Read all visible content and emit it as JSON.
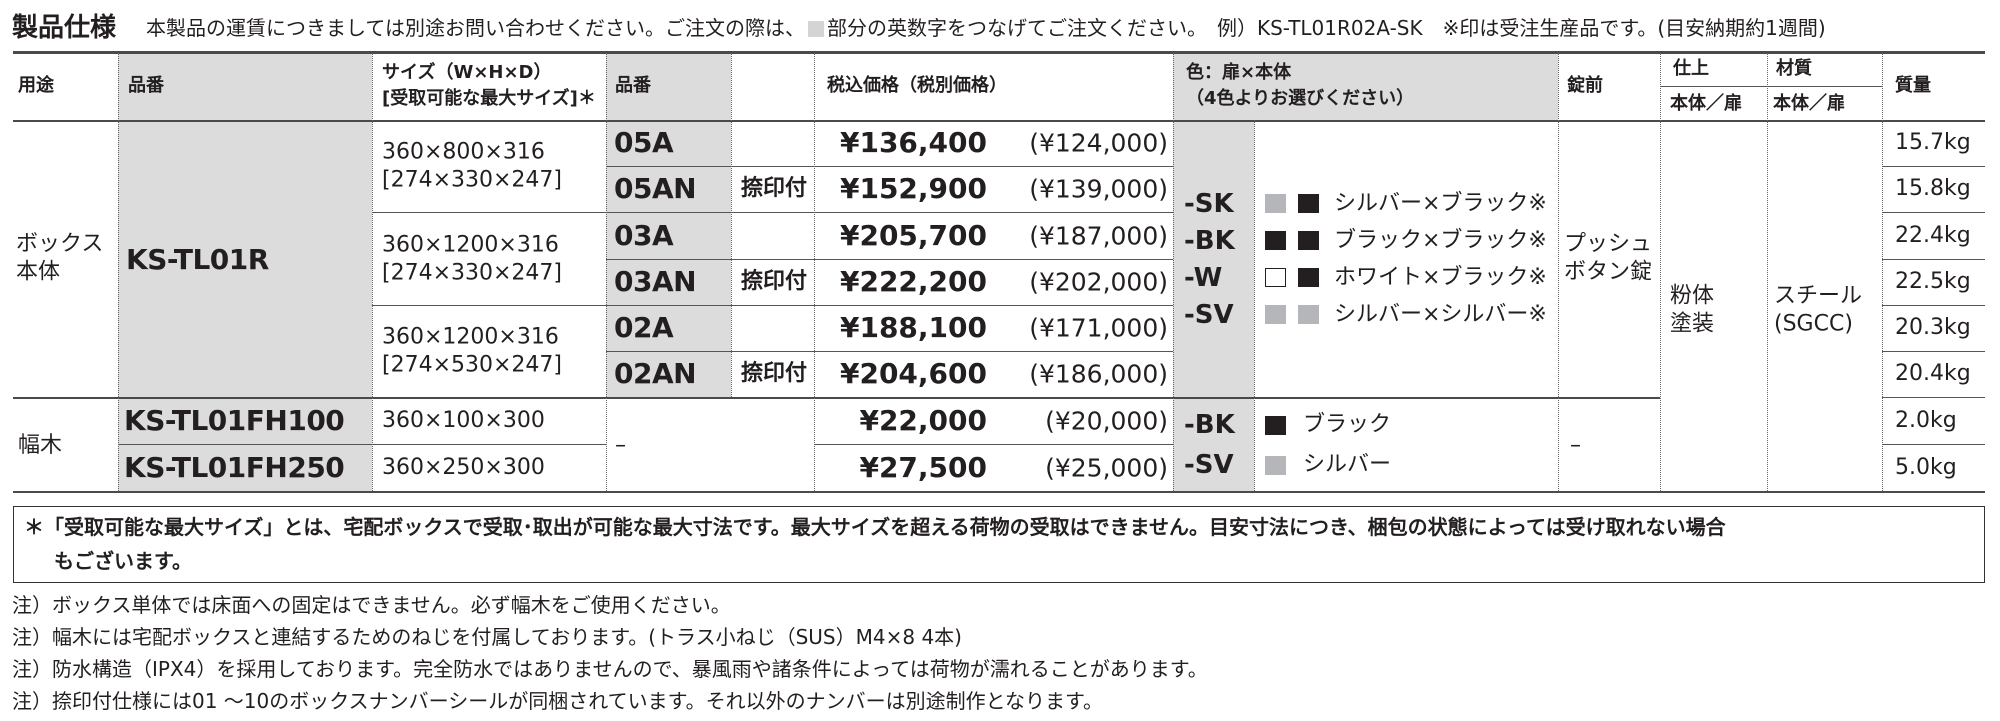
{
  "heading": {
    "title": "製品仕様",
    "note_before": "本製品の運賃につきましては別途お問い合わせください。ご注文の際は、",
    "note_after": "部分の英数字をつなげてご注文ください。　例）KS-TL01R02A-SK　※印は受注生産品です。(目安納期約1週間)",
    "highlight_color": "#d4d4d4"
  },
  "columns": {
    "use": "用途",
    "model": "品番",
    "size_line1": "サイズ（W×H×D）",
    "size_line2": "[受取可能な最大サイズ]＊",
    "model2": "品番",
    "price": "税込価格（税別価格）",
    "color_line1": "色：扉×本体",
    "color_line2": "（4色よりお選びください）",
    "lock": "錠前",
    "finish": "仕上",
    "finish_sub": "本体／扉",
    "material": "材質",
    "material_sub": "本体／扉",
    "weight": "質量"
  },
  "box": {
    "use_line1": "ボックス",
    "use_line2": "本体",
    "model": "KS-TL01R",
    "sizes": [
      {
        "size": "360×800×316",
        "max": "[274×330×247]"
      },
      {
        "size": "360×1200×316",
        "max": "[274×330×247]"
      },
      {
        "size": "360×1200×316",
        "max": "[274×530×247]"
      }
    ],
    "rows": [
      {
        "code": "05A",
        "stamp": "",
        "price": "¥136,400",
        "price_ex": "(¥124,000)",
        "weight": "15.7kg"
      },
      {
        "code": "05AN",
        "stamp": "捺印付",
        "price": "¥152,900",
        "price_ex": "(¥139,000)",
        "weight": "15.8kg"
      },
      {
        "code": "03A",
        "stamp": "",
        "price": "¥205,700",
        "price_ex": "(¥187,000)",
        "weight": "22.4kg"
      },
      {
        "code": "03AN",
        "stamp": "捺印付",
        "price": "¥222,200",
        "price_ex": "(¥202,000)",
        "weight": "22.5kg"
      },
      {
        "code": "02A",
        "stamp": "",
        "price": "¥188,100",
        "price_ex": "(¥171,000)",
        "weight": "20.3kg"
      },
      {
        "code": "02AN",
        "stamp": "捺印付",
        "price": "¥204,600",
        "price_ex": "(¥186,000)",
        "weight": "20.4kg"
      }
    ],
    "colors": [
      {
        "code": "-SK",
        "name": "シルバー×ブラック※",
        "door": "#b4b6ba",
        "body": "#231f20"
      },
      {
        "code": "-BK",
        "name": "ブラック×ブラック※",
        "door": "#231f20",
        "body": "#231f20"
      },
      {
        "code": "-W",
        "name": "ホワイト×ブラック※",
        "door": "#ffffff",
        "body": "#231f20"
      },
      {
        "code": "-SV",
        "name": "シルバー×シルバー※",
        "door": "#b4b6ba",
        "body": "#b4b6ba"
      }
    ],
    "lock_line1": "プッシュ",
    "lock_line2": "ボタン錠"
  },
  "finish_line1": "粉体",
  "finish_line2": "塗装",
  "material_line1": "スチール",
  "material_line2": "(SGCC)",
  "baseboard": {
    "use": "幅木",
    "code_dash": "–",
    "lock_dash": "–",
    "rows": [
      {
        "model": "KS-TL01FH100",
        "size": "360×100×300",
        "price": "¥22,000",
        "price_ex": "(¥20,000)",
        "weight": "2.0kg"
      },
      {
        "model": "KS-TL01FH250",
        "size": "360×250×300",
        "price": "¥27,500",
        "price_ex": "(¥25,000)",
        "weight": "5.0kg"
      }
    ],
    "colors": [
      {
        "code": "-BK",
        "name": "ブラック",
        "swatch": "#231f20"
      },
      {
        "code": "-SV",
        "name": "シルバー",
        "swatch": "#b4b6ba"
      }
    ]
  },
  "footnote_box": {
    "line1": "＊「受取可能な最大サイズ」とは、宅配ボックスで受取･取出が可能な最大寸法です。最大サイズを超える荷物の受取はできません。目安寸法につき、梱包の状態によっては受け取れない場合",
    "line2": "もございます。"
  },
  "notes": [
    "注）ボックス単体では床面への固定はできません。必ず幅木をご使用ください。",
    "注）幅木には宅配ボックスと連結するためのねじを付属しております。(トラス小ねじ（SUS）M4×8 4本)",
    "注）防水構造（IPX4）を採用しております。完全防水ではありませんので、暴風雨や諸条件によっては荷物が濡れることがあります。",
    "注）捺印付仕様には01 ～10のボックスナンバーシールが同梱されています。それ以外のナンバーは別途制作となります。"
  ]
}
